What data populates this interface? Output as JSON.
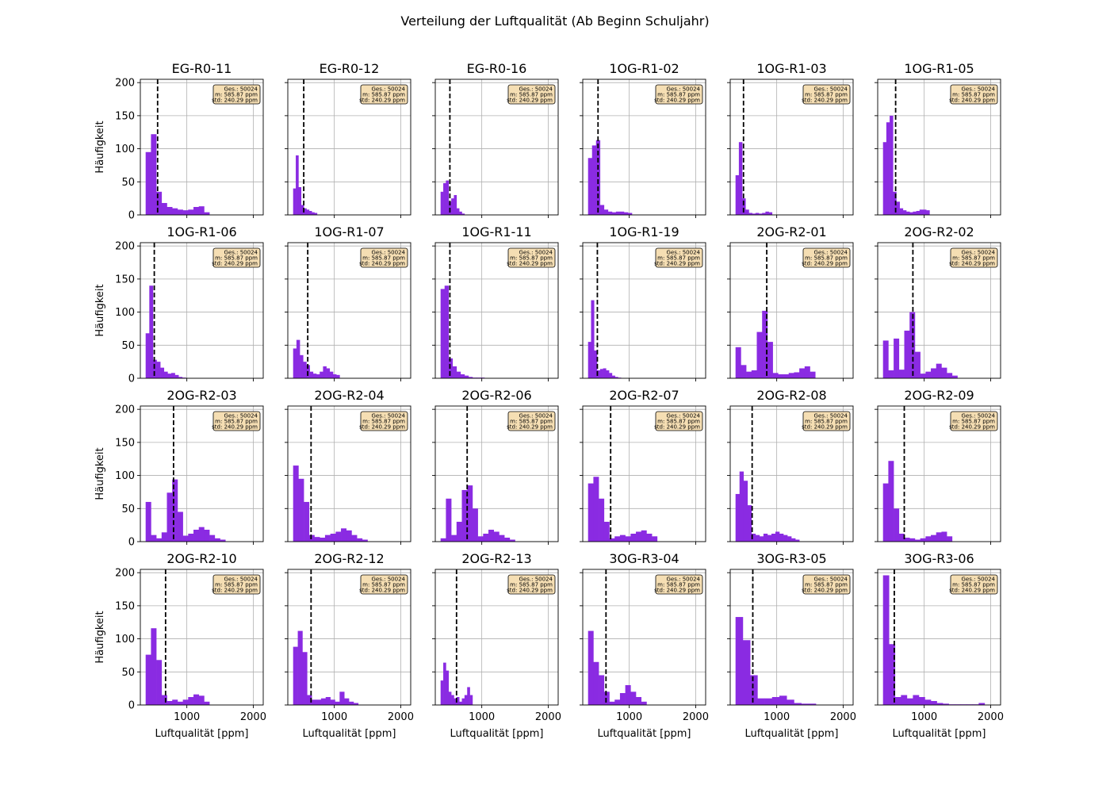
{
  "figure": {
    "title": "Verteilung der Luftqualität (Ab Beginn Schuljahr)",
    "ylabel": "Häufigkeit",
    "xlabel": "Luftqualität [ppm]",
    "bar_color": "#8a2be2",
    "grid": true,
    "stats_box": {
      "placement": "top-right",
      "facecolor": "#f5deb3",
      "lines": [
        "Ges.: 50024",
        "m: 585.87 ppm",
        "std: 240.29 ppm"
      ]
    }
  },
  "chart_data": [
    {
      "type": "bar",
      "title": "EG-R0-11",
      "mean": 560,
      "xlim": [
        300,
        2150
      ],
      "ylim": [
        0,
        205
      ],
      "xticks": [
        1000,
        2000
      ],
      "yticks": [
        0,
        50,
        100,
        150,
        200
      ],
      "bin_start": 380,
      "bin_width": 80,
      "values": [
        95,
        122,
        35,
        18,
        12,
        10,
        8,
        7,
        8,
        12,
        13,
        4,
        0,
        0,
        0,
        0,
        0,
        0,
        0,
        0
      ]
    },
    {
      "type": "bar",
      "title": "EG-R0-12",
      "mean": 540,
      "xlim": [
        300,
        2150
      ],
      "ylim": [
        0,
        205
      ],
      "xticks": [
        1000,
        2000
      ],
      "yticks": [
        0,
        50,
        100,
        150,
        200
      ],
      "bin_start": 380,
      "bin_width": 40,
      "values": [
        40,
        90,
        42,
        15,
        10,
        8,
        6,
        4,
        3
      ]
    },
    {
      "type": "bar",
      "title": "EG-R0-16",
      "mean": 520,
      "xlim": [
        300,
        2150
      ],
      "ylim": [
        0,
        205
      ],
      "xticks": [
        1000,
        2000
      ],
      "yticks": [
        0,
        50,
        100,
        150,
        200
      ],
      "bin_start": 380,
      "bin_width": 40,
      "values": [
        35,
        48,
        52,
        20,
        25,
        30,
        10,
        5,
        2
      ]
    },
    {
      "type": "bar",
      "title": "1OG-R1-02",
      "mean": 530,
      "xlim": [
        300,
        2150
      ],
      "ylim": [
        0,
        205
      ],
      "xticks": [
        1000,
        2000
      ],
      "yticks": [
        0,
        50,
        100,
        150,
        200
      ],
      "bin_start": 380,
      "bin_width": 60,
      "values": [
        86,
        105,
        113,
        15,
        8,
        5,
        4,
        5,
        5,
        4,
        3
      ]
    },
    {
      "type": "bar",
      "title": "1OG-R1-03",
      "mean": 500,
      "xlim": [
        300,
        2150
      ],
      "ylim": [
        0,
        205
      ],
      "xticks": [
        1000,
        2000
      ],
      "yticks": [
        0,
        50,
        100,
        150,
        200
      ],
      "bin_start": 380,
      "bin_width": 50,
      "values": [
        60,
        110,
        25,
        8,
        3,
        2,
        3,
        2,
        3,
        5,
        4
      ]
    },
    {
      "type": "bar",
      "title": "1OG-R1-05",
      "mean": 570,
      "xlim": [
        300,
        2150
      ],
      "ylim": [
        0,
        205
      ],
      "xticks": [
        1000,
        2000
      ],
      "yticks": [
        0,
        50,
        100,
        150,
        200
      ],
      "bin_start": 380,
      "bin_width": 50,
      "values": [
        110,
        140,
        150,
        35,
        20,
        10,
        7,
        5,
        4,
        5,
        6,
        8,
        8,
        7
      ]
    },
    {
      "type": "bar",
      "title": "1OG-R1-06",
      "mean": 510,
      "xlim": [
        300,
        2150
      ],
      "ylim": [
        0,
        205
      ],
      "xticks": [
        1000,
        2000
      ],
      "yticks": [
        0,
        50,
        100,
        150,
        200
      ],
      "bin_start": 380,
      "bin_width": 55,
      "values": [
        68,
        140,
        28,
        25,
        16,
        10,
        7,
        8,
        5,
        2,
        1
      ]
    },
    {
      "type": "bar",
      "title": "1OG-R1-07",
      "mean": 600,
      "xlim": [
        300,
        2150
      ],
      "ylim": [
        0,
        205
      ],
      "xticks": [
        1000,
        2000
      ],
      "yticks": [
        0,
        50,
        100,
        150,
        200
      ],
      "bin_start": 380,
      "bin_width": 50,
      "values": [
        45,
        58,
        35,
        25,
        20,
        10,
        7,
        6,
        10,
        18,
        15,
        10,
        6,
        5
      ]
    },
    {
      "type": "bar",
      "title": "1OG-R1-11",
      "mean": 520,
      "xlim": [
        300,
        2150
      ],
      "ylim": [
        0,
        205
      ],
      "xticks": [
        1000,
        2000
      ],
      "yticks": [
        0,
        50,
        100,
        150,
        200
      ],
      "bin_start": 380,
      "bin_width": 60,
      "values": [
        135,
        140,
        30,
        18,
        10,
        6,
        4,
        2,
        1,
        1,
        1
      ]
    },
    {
      "type": "bar",
      "title": "1OG-R1-19",
      "mean": 520,
      "xlim": [
        300,
        2150
      ],
      "ylim": [
        0,
        205
      ],
      "xticks": [
        1000,
        2000
      ],
      "yticks": [
        0,
        50,
        100,
        150,
        200
      ],
      "bin_start": 380,
      "bin_width": 45,
      "values": [
        55,
        118,
        42,
        12,
        14,
        15,
        12,
        8,
        4,
        2,
        1
      ]
    },
    {
      "type": "bar",
      "title": "2OG-R2-01",
      "mean": 850,
      "xlim": [
        300,
        2150
      ],
      "ylim": [
        0,
        205
      ],
      "xticks": [
        1000,
        2000
      ],
      "yticks": [
        0,
        50,
        100,
        150,
        200
      ],
      "bin_start": 380,
      "bin_width": 80,
      "values": [
        47,
        20,
        10,
        12,
        70,
        102,
        55,
        8,
        6,
        6,
        8,
        9,
        15,
        18,
        10
      ]
    },
    {
      "type": "bar",
      "title": "2OG-R2-02",
      "mean": 830,
      "xlim": [
        300,
        2150
      ],
      "ylim": [
        0,
        205
      ],
      "xticks": [
        1000,
        2000
      ],
      "yticks": [
        0,
        50,
        100,
        150,
        200
      ],
      "bin_start": 380,
      "bin_width": 80,
      "values": [
        57,
        12,
        60,
        13,
        72,
        100,
        40,
        7,
        10,
        15,
        22,
        16,
        8,
        4
      ]
    },
    {
      "type": "bar",
      "title": "2OG-R2-03",
      "mean": 800,
      "xlim": [
        300,
        2150
      ],
      "ylim": [
        0,
        205
      ],
      "xticks": [
        1000,
        2000
      ],
      "yticks": [
        0,
        50,
        100,
        150,
        200
      ],
      "bin_start": 380,
      "bin_width": 80,
      "values": [
        60,
        10,
        5,
        14,
        74,
        94,
        45,
        9,
        12,
        18,
        22,
        18,
        10,
        5,
        3
      ]
    },
    {
      "type": "bar",
      "title": "2OG-R2-04",
      "mean": 650,
      "xlim": [
        300,
        2150
      ],
      "ylim": [
        0,
        205
      ],
      "xticks": [
        1000,
        2000
      ],
      "yticks": [
        0,
        50,
        100,
        150,
        200
      ],
      "bin_start": 380,
      "bin_width": 80,
      "values": [
        115,
        95,
        60,
        10,
        7,
        6,
        10,
        12,
        15,
        20,
        17,
        10,
        5,
        3
      ]
    },
    {
      "type": "bar",
      "title": "2OG-R2-06",
      "mean": 780,
      "xlim": [
        300,
        2150
      ],
      "ylim": [
        0,
        205
      ],
      "xticks": [
        1000,
        2000
      ],
      "yticks": [
        0,
        50,
        100,
        150,
        200
      ],
      "bin_start": 380,
      "bin_width": 80,
      "values": [
        5,
        65,
        10,
        30,
        78,
        85,
        50,
        8,
        12,
        18,
        15,
        10,
        6,
        3
      ]
    },
    {
      "type": "bar",
      "title": "2OG-R2-07",
      "mean": 720,
      "xlim": [
        300,
        2150
      ],
      "ylim": [
        0,
        205
      ],
      "xticks": [
        1000,
        2000
      ],
      "yticks": [
        0,
        50,
        100,
        150,
        200
      ],
      "bin_start": 380,
      "bin_width": 80,
      "values": [
        88,
        98,
        65,
        30,
        5,
        8,
        10,
        8,
        12,
        15,
        17,
        12,
        8
      ]
    },
    {
      "type": "bar",
      "title": "2OG-R2-08",
      "mean": 630,
      "xlim": [
        300,
        2150
      ],
      "ylim": [
        0,
        205
      ],
      "xticks": [
        1000,
        2000
      ],
      "yticks": [
        0,
        50,
        100,
        150,
        200
      ],
      "bin_start": 380,
      "bin_width": 60,
      "values": [
        72,
        106,
        92,
        55,
        12,
        10,
        8,
        12,
        10,
        12,
        15,
        12,
        10,
        8,
        5,
        3
      ]
    },
    {
      "type": "bar",
      "title": "2OG-R2-09",
      "mean": 700,
      "xlim": [
        300,
        2150
      ],
      "ylim": [
        0,
        205
      ],
      "xticks": [
        1000,
        2000
      ],
      "yticks": [
        0,
        50,
        100,
        150,
        200
      ],
      "bin_start": 380,
      "bin_width": 80,
      "values": [
        88,
        122,
        50,
        12,
        6,
        5,
        3,
        5,
        8,
        10,
        14,
        15,
        8
      ]
    },
    {
      "type": "bar",
      "title": "2OG-R2-10",
      "mean": 680,
      "xlim": [
        300,
        2150
      ],
      "ylim": [
        0,
        205
      ],
      "xticks": [
        1000,
        2000
      ],
      "yticks": [
        0,
        50,
        100,
        150,
        200
      ],
      "bin_start": 380,
      "bin_width": 80,
      "values": [
        76,
        116,
        68,
        15,
        6,
        8,
        5,
        8,
        12,
        16,
        14,
        5
      ]
    },
    {
      "type": "bar",
      "title": "2OG-R2-12",
      "mean": 650,
      "xlim": [
        300,
        2150
      ],
      "ylim": [
        0,
        205
      ],
      "xticks": [
        1000,
        2000
      ],
      "yticks": [
        0,
        50,
        100,
        150,
        200
      ],
      "bin_start": 380,
      "bin_width": 70,
      "values": [
        88,
        112,
        80,
        15,
        8,
        8,
        10,
        12,
        8,
        5,
        20,
        10,
        5,
        3
      ]
    },
    {
      "type": "bar",
      "title": "2OG-R2-13",
      "mean": 620,
      "xlim": [
        300,
        2150
      ],
      "ylim": [
        0,
        205
      ],
      "xticks": [
        1000,
        2000
      ],
      "yticks": [
        0,
        50,
        100,
        150,
        200
      ],
      "bin_start": 380,
      "bin_width": 40,
      "values": [
        37,
        64,
        52,
        20,
        15,
        10,
        12,
        5,
        10,
        15,
        27,
        15
      ]
    },
    {
      "type": "bar",
      "title": "3OG-R3-04",
      "mean": 650,
      "xlim": [
        300,
        2150
      ],
      "ylim": [
        0,
        205
      ],
      "xticks": [
        1000,
        2000
      ],
      "yticks": [
        0,
        50,
        100,
        150,
        200
      ],
      "bin_start": 380,
      "bin_width": 80,
      "values": [
        112,
        65,
        45,
        20,
        5,
        8,
        18,
        30,
        20,
        12,
        5
      ]
    },
    {
      "type": "bar",
      "title": "3OG-R3-05",
      "mean": 640,
      "xlim": [
        300,
        2150
      ],
      "ylim": [
        0,
        205
      ],
      "xticks": [
        1000,
        2000
      ],
      "yticks": [
        0,
        50,
        100,
        150,
        200
      ],
      "bin_start": 380,
      "bin_width": 110,
      "values": [
        133,
        98,
        45,
        10,
        10,
        12,
        14,
        8,
        3,
        2,
        2
      ]
    },
    {
      "type": "bar",
      "title": "3OG-R3-06",
      "mean": 550,
      "xlim": [
        300,
        2150
      ],
      "ylim": [
        0,
        205
      ],
      "xticks": [
        1000,
        2000
      ],
      "yticks": [
        0,
        50,
        100,
        150,
        200
      ],
      "bin_start": 380,
      "bin_width": 90,
      "values": [
        196,
        92,
        12,
        15,
        10,
        15,
        12,
        8,
        6,
        3,
        2,
        1,
        1,
        1,
        1,
        1,
        3
      ]
    }
  ]
}
